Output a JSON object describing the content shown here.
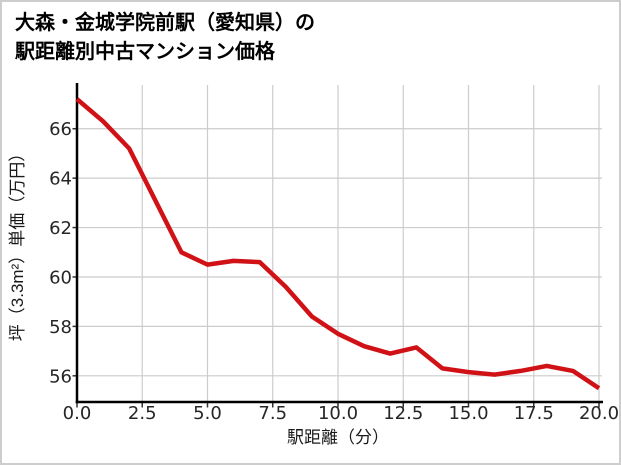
{
  "page": {
    "title_line1": "大森・金城学院前駅（愛知県）の",
    "title_line2": "駅距離別中古マンション価格"
  },
  "chart_data": {
    "type": "line",
    "title": "大森・金城学院前駅（愛知県）の駅距離別中古マンション価格",
    "xlabel": "駅距離（分）",
    "ylabel": "坪（3.3m²）単価（万円）",
    "x": [
      0,
      1,
      2,
      3,
      4,
      5,
      6,
      7,
      8,
      9,
      10,
      11,
      12,
      13,
      14,
      15,
      16,
      17,
      18,
      19,
      20
    ],
    "values": [
      67.2,
      66.3,
      65.2,
      63.1,
      61.0,
      60.5,
      60.65,
      60.6,
      59.6,
      58.4,
      57.7,
      57.2,
      56.9,
      57.15,
      56.3,
      56.15,
      56.05,
      56.2,
      56.4,
      56.2,
      55.5
    ],
    "xticks": [
      0,
      2.5,
      5,
      7.5,
      10,
      12.5,
      15,
      17.5,
      20
    ],
    "xticklabels": [
      "0.0",
      "2.5",
      "5.0",
      "7.5",
      "10.0",
      "12.5",
      "15.0",
      "17.5",
      "20.0"
    ],
    "yticks": [
      56,
      58,
      60,
      62,
      64,
      66
    ],
    "yticklabels": [
      "56",
      "58",
      "60",
      "62",
      "64",
      "66"
    ],
    "xlim": [
      0,
      20.11
    ],
    "ylim": [
      54.94,
      67.81
    ],
    "grid": true,
    "legend": "none",
    "line_color": "#d01217",
    "grid_color": "#cccccc",
    "spine_color": "#000000",
    "tick_color": "#333333"
  }
}
